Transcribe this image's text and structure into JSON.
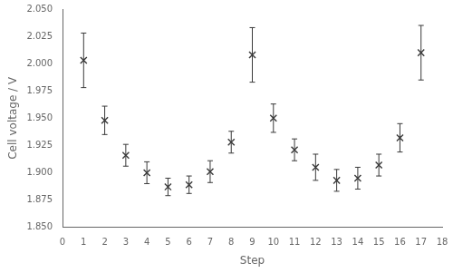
{
  "chart_data": {
    "type": "scatter",
    "x": [
      1,
      2,
      3,
      4,
      5,
      6,
      7,
      8,
      9,
      10,
      11,
      12,
      13,
      14,
      15,
      16,
      17
    ],
    "values": [
      2.003,
      1.948,
      1.916,
      1.9,
      1.887,
      1.889,
      1.901,
      1.928,
      2.008,
      1.95,
      1.921,
      1.905,
      1.893,
      1.895,
      1.907,
      1.932,
      2.01
    ],
    "errors": [
      0.025,
      0.013,
      0.01,
      0.01,
      0.008,
      0.008,
      0.01,
      0.01,
      0.025,
      0.013,
      0.01,
      0.012,
      0.01,
      0.01,
      0.01,
      0.013,
      0.025
    ],
    "xlabel": "Step",
    "ylabel": "Cell voltage / V",
    "xlim": [
      0,
      18
    ],
    "ylim": [
      1.85,
      2.05
    ],
    "xticks": [
      0,
      1,
      2,
      3,
      4,
      5,
      6,
      7,
      8,
      9,
      10,
      11,
      12,
      13,
      14,
      15,
      16,
      17,
      18
    ],
    "yticks": [
      {
        "value": 1.85,
        "label": "1.850"
      },
      1.875,
      {
        "value": 1.9,
        "label": "1.900"
      },
      1.925,
      {
        "value": 1.95,
        "label": "1.950"
      },
      1.975,
      {
        "value": 2.0,
        "label": "2.000"
      },
      2.025,
      {
        "value": 2.05,
        "label": "2.050"
      }
    ],
    "marker": "x",
    "color": "#3a3a3a",
    "grid": false
  }
}
